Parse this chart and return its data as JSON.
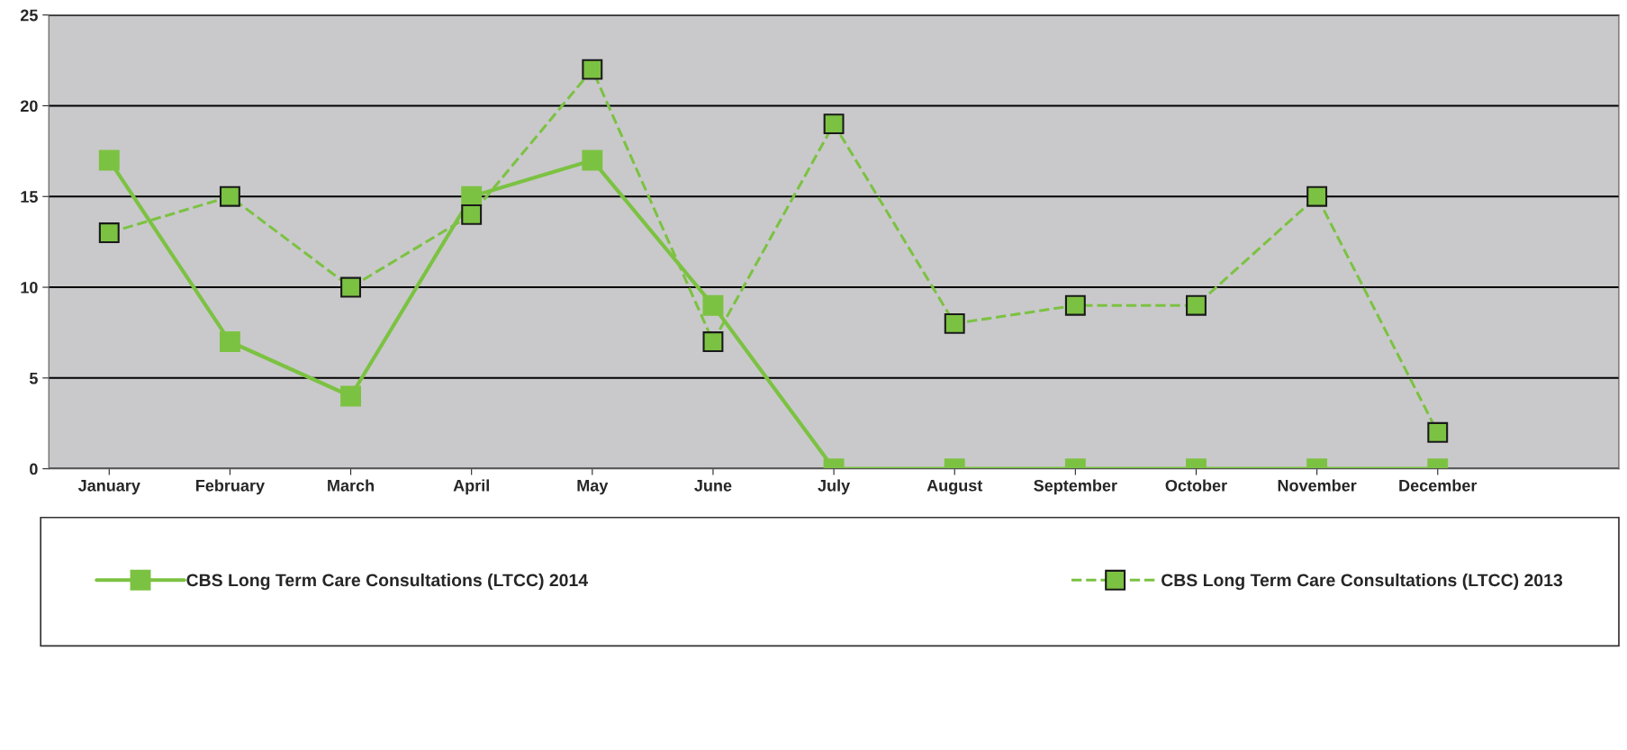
{
  "chart_data": {
    "type": "line",
    "categories": [
      "January",
      "February",
      "March",
      "April",
      "May",
      "June",
      "July",
      "August",
      "September",
      "October",
      "November",
      "December"
    ],
    "series": [
      {
        "name": "CBS Long Term Care Consultations (LTCC) 2014",
        "color": "#7cc242",
        "line_style": "solid",
        "values": [
          17,
          7,
          4,
          15,
          17,
          9,
          0,
          0,
          0,
          0,
          0,
          0
        ]
      },
      {
        "name": "CBS Long Term Care Consultations (LTCC) 2013",
        "color": "#7cc242",
        "line_style": "dashed",
        "values": [
          13,
          15,
          10,
          14,
          22,
          7,
          19,
          8,
          9,
          9,
          15,
          2
        ]
      }
    ],
    "ylim": [
      0,
      25
    ],
    "yticks": [
      0,
      5,
      10,
      15,
      20,
      25
    ],
    "grid": "y",
    "legend": "bottom",
    "marker": "square"
  }
}
